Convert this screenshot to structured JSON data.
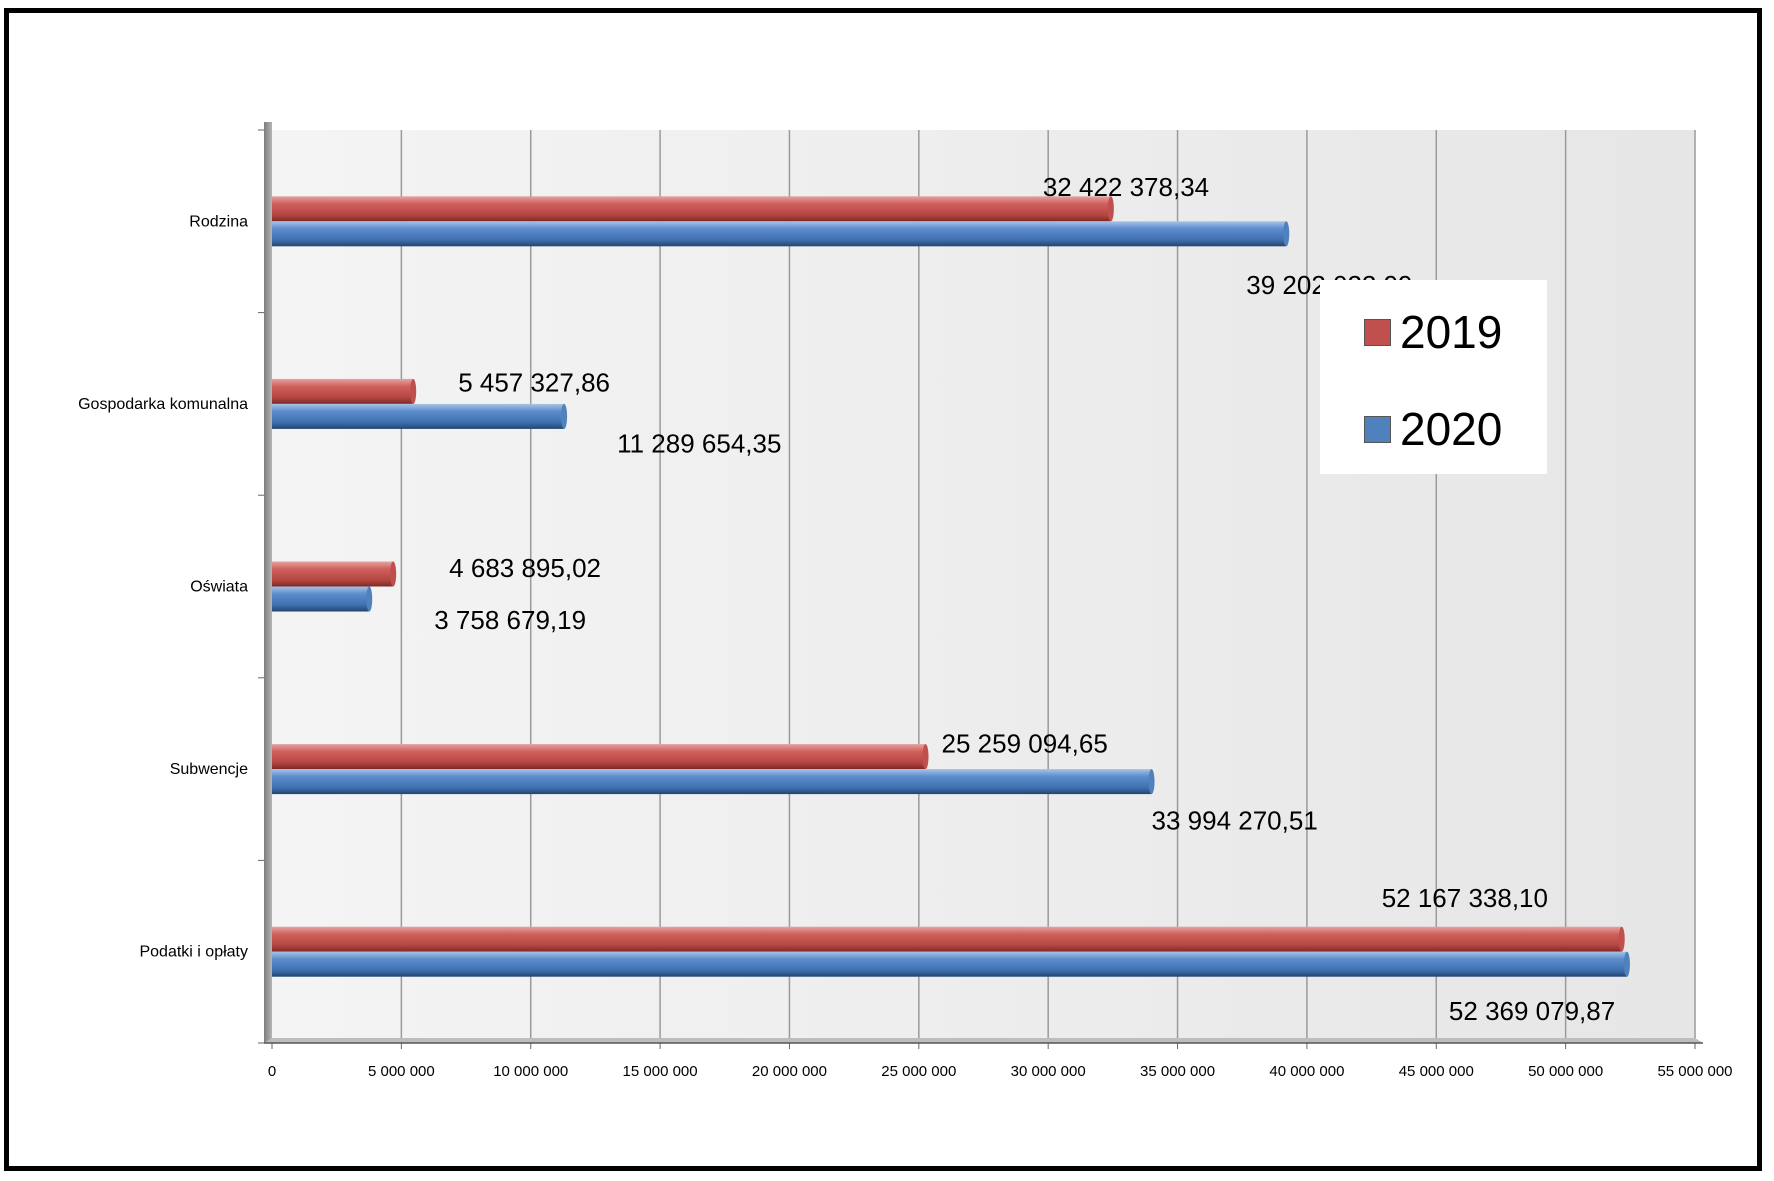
{
  "chart_data": {
    "type": "bar",
    "orientation": "horizontal",
    "categories": [
      "Podatki i opłaty",
      "Subwencje",
      "Oświata",
      "Gospodarka komunalna",
      "Rodzina"
    ],
    "series": [
      {
        "name": "2019",
        "color": "#c0504d",
        "values": [
          52167338.1,
          25259094.65,
          4683895.02,
          5457327.86,
          32422378.34
        ],
        "labels": [
          "52 167 338,10",
          "25 259 094,65",
          "4 683 895,02",
          "5 457 327,86",
          "32 422 378,34"
        ]
      },
      {
        "name": "2020",
        "color": "#4f81bd",
        "values": [
          52369079.87,
          33994270.51,
          3758679.19,
          11289654.35,
          39202022.99
        ],
        "labels": [
          "52 369 079,87",
          "33 994 270,51",
          "3 758 679,19",
          "11 289 654,35",
          "39 202 022,99"
        ]
      }
    ],
    "xlim": [
      0,
      55000000
    ],
    "xticks": [
      0,
      5000000,
      10000000,
      15000000,
      20000000,
      25000000,
      30000000,
      35000000,
      40000000,
      45000000,
      50000000,
      55000000
    ],
    "xtick_labels": [
      "0",
      "5 000 000",
      "10 000 000",
      "15 000 000",
      "20 000 000",
      "25 000 000",
      "30 000 000",
      "35 000 000",
      "40 000 000",
      "45 000 000",
      "50 000 000",
      "55 000 000"
    ],
    "grid": true,
    "legend_position": "right",
    "title": "",
    "xlabel": "",
    "ylabel": ""
  }
}
